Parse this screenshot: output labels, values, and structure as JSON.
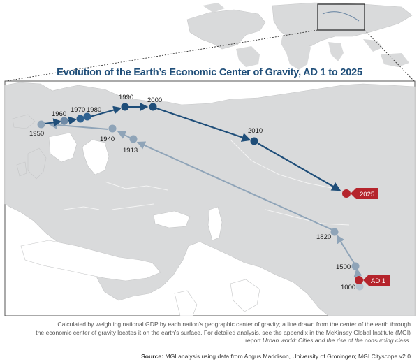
{
  "title": "Evolution of the Earth’s Economic Center of Gravity, AD 1 to 2025",
  "caption": {
    "line1": "Calculated by weighting national GDP by each nation’s geographic center of gravity; a line drawn from the center of the earth through",
    "line2": "the economic center of gravity locates it on the earth’s surface. For detailed analysis, see the appendix in the McKinsey Global Institute (MGI)",
    "line3_prefix": "report",
    "line3_italic": "Urban world: Cities and the rise of the consuming class."
  },
  "source": {
    "label": "Source:",
    "text": "MGI analysis using data from Angus Maddison, University of Groningen; MGI Cityscope v2.0"
  },
  "colors": {
    "modern": "#1f4e79",
    "historic": "#8fa4b8",
    "highlight": "#b5242c",
    "land": "#d9dadb",
    "ocean": "#ffffff"
  },
  "points": {
    "ad1": {
      "label": "AD 1"
    },
    "p1000": {
      "label": "1000"
    },
    "p1500": {
      "label": "1500"
    },
    "p1820": {
      "label": "1820"
    },
    "p1913": {
      "label": "1913"
    },
    "p1940": {
      "label": "1940"
    },
    "p1950": {
      "label": "1950"
    },
    "p1960": {
      "label": "1960"
    },
    "p1970": {
      "label": "1970"
    },
    "p1980": {
      "label": "1980"
    },
    "p1990": {
      "label": "1990"
    },
    "p2000": {
      "label": "2000"
    },
    "p2010": {
      "label": "2010"
    },
    "p2025": {
      "label": "2025"
    }
  }
}
